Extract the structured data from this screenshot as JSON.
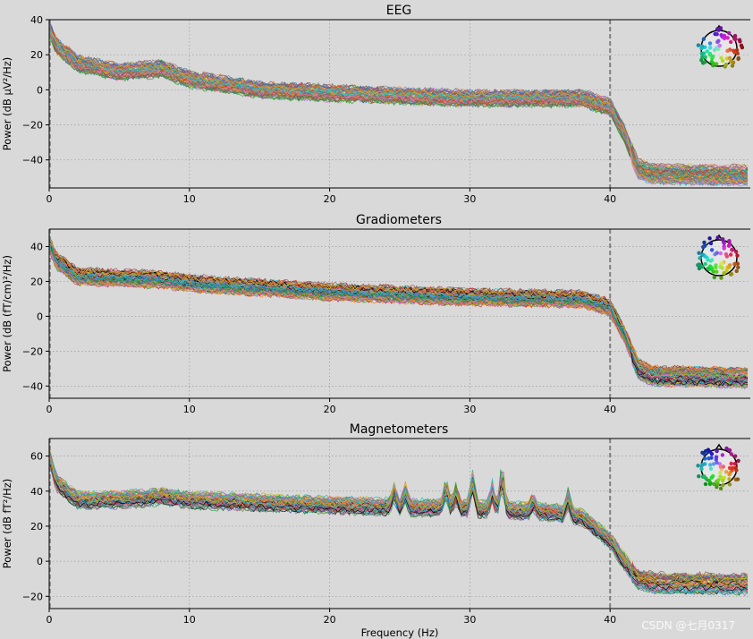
{
  "figure": {
    "xlabel": "Frequency (Hz)",
    "watermark": "CSDN @七月0317"
  },
  "chart_data": [
    {
      "type": "line",
      "title": "EEG",
      "ylabel": "Power (dB µV²/Hz)",
      "xlim": [
        0,
        50
      ],
      "ylim": [
        -56,
        40
      ],
      "xticks": [
        0,
        10,
        20,
        30,
        40
      ],
      "yticks": [
        40,
        20,
        0,
        -20,
        -40
      ],
      "vline": 40,
      "grid": true,
      "legend": "sensor-layout inset, top-right",
      "sensor_colors": [
        "#2ca02c",
        "#9467bd",
        "#1f77b4",
        "#d62728",
        "#8c564b",
        "#e377c2",
        "#17becf",
        "#bcbd22",
        "#ff7f0e",
        "#7f7f7f"
      ],
      "channels": 60,
      "series_profile": {
        "x": [
          0,
          0.5,
          2,
          5,
          8,
          10,
          15,
          20,
          30,
          38,
          40,
          41,
          42,
          43,
          50
        ],
        "y": [
          35,
          25,
          15,
          10,
          12,
          6,
          0,
          -2,
          -5,
          -5,
          -10,
          -25,
          -45,
          -48,
          -49
        ]
      }
    },
    {
      "type": "line",
      "title": "Gradiometers",
      "ylabel": "Power (dB (fT/cm)²/Hz)",
      "xlim": [
        0,
        50
      ],
      "ylim": [
        -47,
        50
      ],
      "xticks": [
        0,
        10,
        20,
        30,
        40
      ],
      "yticks": [
        40,
        20,
        0,
        -20,
        -40
      ],
      "vline": 40,
      "grid": true,
      "legend": "sensor-layout inset, top-right",
      "sensor_colors": [
        "#d62728",
        "#2ca02c",
        "#1f77b4",
        "#9467bd",
        "#8c564b",
        "#e377c2",
        "#000000",
        "#17becf",
        "#ff7f0e",
        "#bcbd22"
      ],
      "channels": 80,
      "series_profile": {
        "x": [
          0,
          0.5,
          2,
          5,
          8,
          10,
          20,
          30,
          38,
          40,
          41,
          42,
          43,
          50
        ],
        "y": [
          42,
          32,
          23,
          22,
          21,
          19,
          14,
          11,
          10,
          5,
          -10,
          -30,
          -34,
          -35
        ]
      }
    },
    {
      "type": "line",
      "title": "Magnetometers",
      "ylabel": "Power (dB fT²/Hz)",
      "xlim": [
        0,
        50
      ],
      "ylim": [
        -27,
        70
      ],
      "xticks": [
        0,
        10,
        20,
        30,
        40
      ],
      "yticks": [
        60,
        40,
        20,
        0,
        -20
      ],
      "vline": 40,
      "grid": true,
      "legend": "sensor-layout inset, top-right",
      "sensor_colors": [
        "#9467bd",
        "#2ca02c",
        "#ff7f0e",
        "#1f77b4",
        "#d62728",
        "#8c564b",
        "#e377c2",
        "#000000",
        "#17becf",
        "#bcbd22"
      ],
      "channels": 60,
      "series_profile": {
        "x": [
          0,
          0.5,
          2,
          5,
          8,
          10,
          20,
          30,
          36,
          38,
          40,
          41,
          42,
          43,
          50
        ],
        "y": [
          60,
          45,
          35,
          35,
          37,
          35,
          32,
          30,
          28,
          25,
          12,
          0,
          -10,
          -12,
          -13
        ]
      },
      "peaks": [
        {
          "x": 24.6,
          "y": 42
        },
        {
          "x": 25.4,
          "y": 40
        },
        {
          "x": 28.3,
          "y": 45
        },
        {
          "x": 29.0,
          "y": 40
        },
        {
          "x": 30.2,
          "y": 47
        },
        {
          "x": 31.6,
          "y": 41
        },
        {
          "x": 32.3,
          "y": 54
        },
        {
          "x": 34.5,
          "y": 35
        },
        {
          "x": 37.0,
          "y": 37
        }
      ]
    }
  ]
}
